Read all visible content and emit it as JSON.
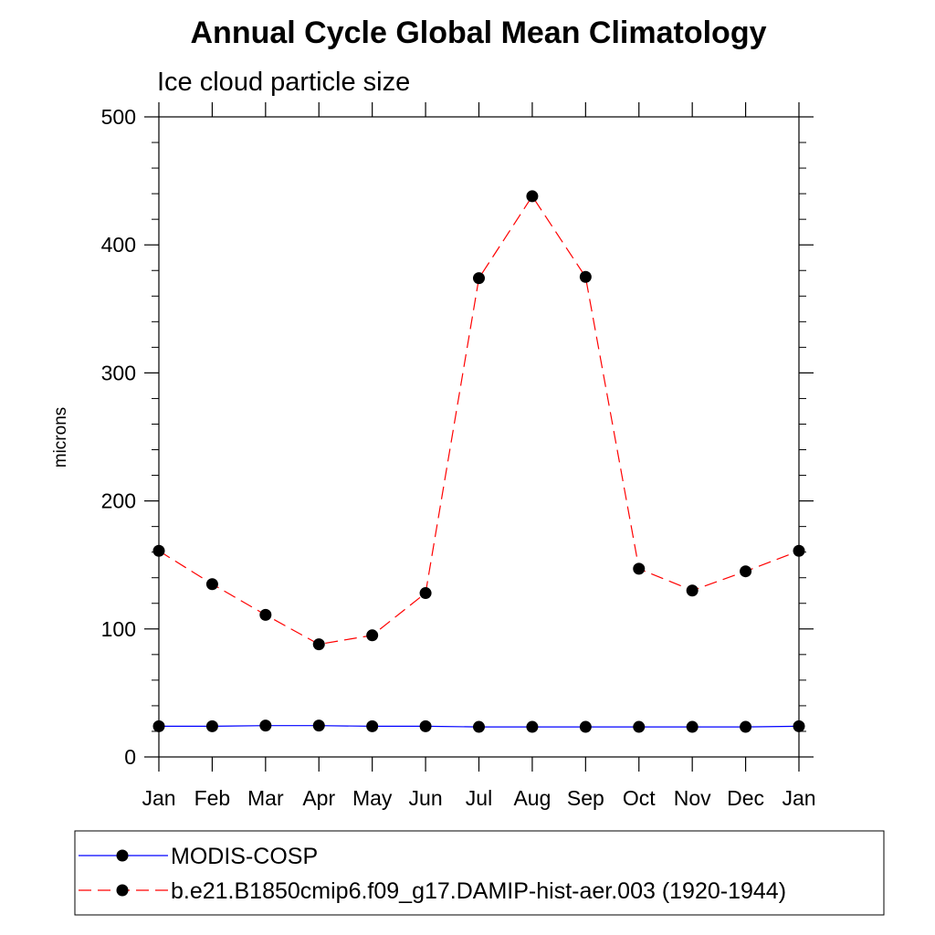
{
  "chart_data": {
    "type": "line",
    "title": "Annual Cycle Global Mean Climatology",
    "subtitle": "Ice cloud particle size",
    "ylabel": "microns",
    "xlabel": "",
    "categories": [
      "Jan",
      "Feb",
      "Mar",
      "Apr",
      "May",
      "Jun",
      "Jul",
      "Aug",
      "Sep",
      "Oct",
      "Nov",
      "Dec",
      "Jan"
    ],
    "ylim": [
      0,
      500
    ],
    "yticks": [
      0,
      100,
      200,
      300,
      400,
      500
    ],
    "yminor_step": 20,
    "grid": false,
    "legend_position": "bottom",
    "series": [
      {
        "name": "MODIS-COSP",
        "color": "#0000ff",
        "style": "solid",
        "marker": "filled-circle",
        "values": [
          24,
          24,
          24.5,
          24.5,
          24,
          24,
          23.5,
          23.5,
          23.5,
          23.5,
          23.5,
          23.5,
          24
        ]
      },
      {
        "name": "b.e21.B1850cmip6.f09_g17.DAMIP-hist-aer.003 (1920-1944)",
        "color": "#ff0000",
        "style": "dashed",
        "marker": "filled-circle",
        "values": [
          161,
          135,
          111,
          88,
          95,
          128,
          374,
          438,
          375,
          147,
          130,
          145,
          161
        ]
      }
    ]
  }
}
